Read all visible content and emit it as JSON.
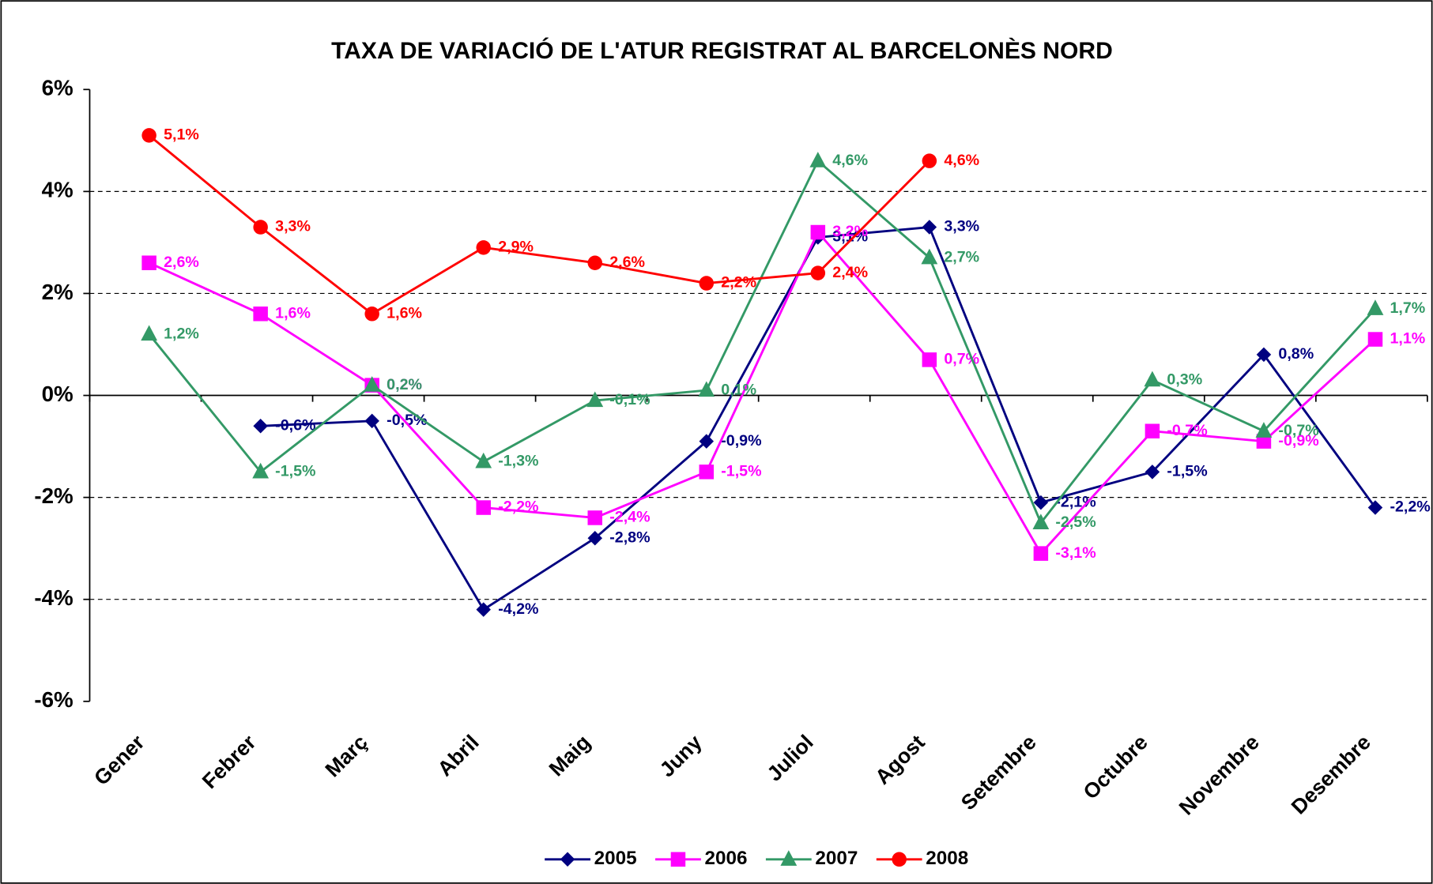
{
  "chart_data": {
    "type": "line",
    "title": "TAXA DE VARIACIÓ DE L'ATUR REGISTRAT AL BARCELONÈS NORD",
    "categories": [
      "Gener",
      "Febrer",
      "Març",
      "Abril",
      "Maig",
      "Juny",
      "Juliol",
      "Agost",
      "Setembre",
      "Octubre",
      "Novembre",
      "Desembre"
    ],
    "series": [
      {
        "name": "2005",
        "color": "#000080",
        "marker": "diamond",
        "values": [
          null,
          -0.6,
          -0.5,
          -4.2,
          -2.8,
          -0.9,
          3.1,
          3.3,
          -2.1,
          -1.5,
          0.8,
          -2.2
        ],
        "value_labels": [
          null,
          "-0,6%",
          "-0,5%",
          "-4,2%",
          "-2,8%",
          "-0,9%",
          "3,1%",
          "3,3%",
          "-2,1%",
          "-1,5%",
          "0,8%",
          "-2,2%"
        ]
      },
      {
        "name": "2006",
        "color": "#ff00ff",
        "marker": "square",
        "values": [
          2.6,
          1.6,
          0.2,
          -2.2,
          -2.4,
          -1.5,
          3.2,
          0.7,
          -3.1,
          -0.7,
          -0.9,
          1.1
        ],
        "value_labels": [
          "2,6%",
          "1,6%",
          "0,2%",
          "-2,2%",
          "-2,4%",
          "-1,5%",
          "3,2%",
          "0,7%",
          "-3,1%",
          "-0,7%",
          "-0,9%",
          "1,1%"
        ]
      },
      {
        "name": "2007",
        "color": "#339966",
        "marker": "triangle",
        "values": [
          1.2,
          -1.5,
          0.2,
          -1.3,
          -0.1,
          0.1,
          4.6,
          2.7,
          -2.5,
          0.3,
          -0.7,
          1.7
        ],
        "value_labels": [
          "1,2%",
          "-1,5%",
          "0,2%",
          "-1,3%",
          "-0,1%",
          "0,1%",
          "4,6%",
          "2,7%",
          "-2,5%",
          "0,3%",
          "-0,7%",
          "1,7%"
        ]
      },
      {
        "name": "2008",
        "color": "#ff0000",
        "marker": "circle",
        "values": [
          5.1,
          3.3,
          1.6,
          2.9,
          2.6,
          2.2,
          2.4,
          4.6,
          null,
          null,
          null,
          null
        ],
        "value_labels": [
          "5,1%",
          "3,3%",
          "1,6%",
          "2,9%",
          "2,6%",
          "2,2%",
          "2,4%",
          "4,6%",
          null,
          null,
          null,
          null
        ]
      }
    ],
    "ylim": [
      -6,
      6
    ],
    "yticks": [
      {
        "value": -6,
        "label": "-6%"
      },
      {
        "value": -4,
        "label": "-4%"
      },
      {
        "value": -2,
        "label": "-2%"
      },
      {
        "value": 0,
        "label": "0%"
      },
      {
        "value": 2,
        "label": "2%"
      },
      {
        "value": 4,
        "label": "4%"
      },
      {
        "value": 6,
        "label": "6%"
      }
    ],
    "grid": true,
    "legend": "bottom"
  }
}
